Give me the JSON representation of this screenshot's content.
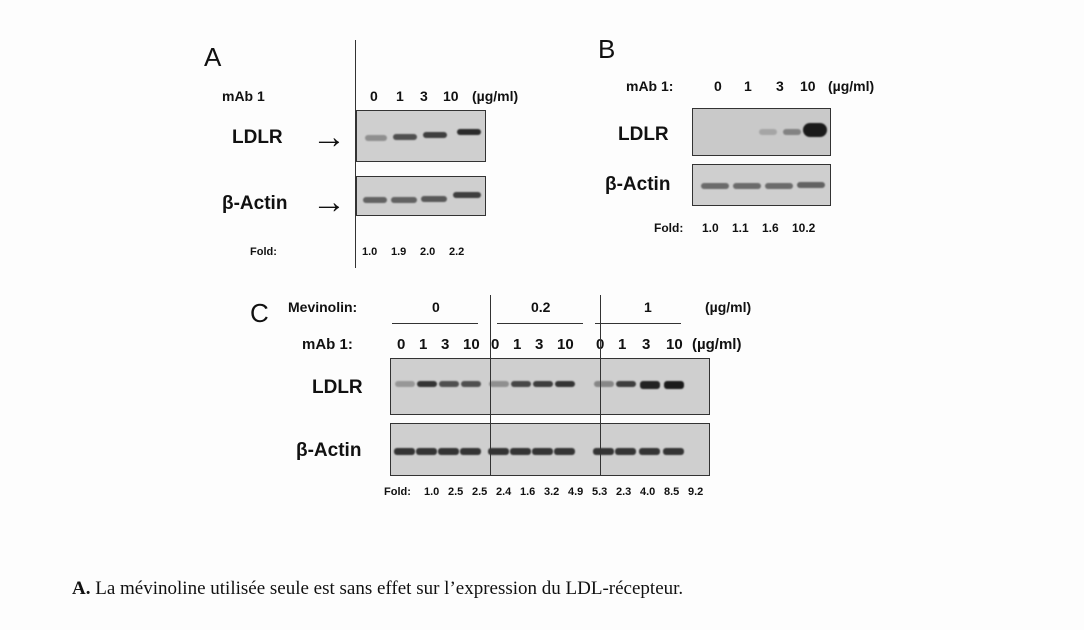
{
  "panel_a": {
    "letter": "A",
    "treatment_label": "mAb 1",
    "lanes": [
      "0",
      "1",
      "3",
      "10"
    ],
    "unit": "(µg/ml)",
    "rows": [
      "LDLR",
      "β-Actin"
    ],
    "arrow": "→",
    "fold_label": "Fold:",
    "fold": [
      "1.0",
      "1.9",
      "2.0",
      "2.2"
    ]
  },
  "panel_b": {
    "letter": "B",
    "treatment_label": "mAb 1:",
    "lanes": [
      "0",
      "1",
      "3",
      "10"
    ],
    "unit": "(µg/ml)",
    "rows": [
      "LDLR",
      "β-Actin"
    ],
    "fold_label": "Fold:",
    "fold": [
      "1.0",
      "1.1",
      "1.6",
      "10.2"
    ]
  },
  "panel_c": {
    "letter": "C",
    "mevinolin_label": "Mevinolin:",
    "mevinolin_groups": [
      "0",
      "0.2",
      "1"
    ],
    "mevinolin_unit": "(µg/ml)",
    "treatment_label": "mAb 1:",
    "lanes": [
      "0",
      "1",
      "3",
      "10",
      "0",
      "1",
      "3",
      "10",
      "0",
      "1",
      "3",
      "10"
    ],
    "unit": "(µg/ml)",
    "rows": [
      "LDLR",
      "β-Actin"
    ],
    "fold_label": "Fold:",
    "fold": [
      "1.0",
      "2.5",
      "2.5",
      "2.4",
      "1.6",
      "3.2",
      "4.9",
      "5.3",
      "2.3",
      "4.0",
      "8.5",
      "9.2"
    ]
  },
  "caption": {
    "prefix": "A.",
    "text": "La mévinoline utilisée seule est sans effet sur l’expression du LDL-récepteur."
  }
}
